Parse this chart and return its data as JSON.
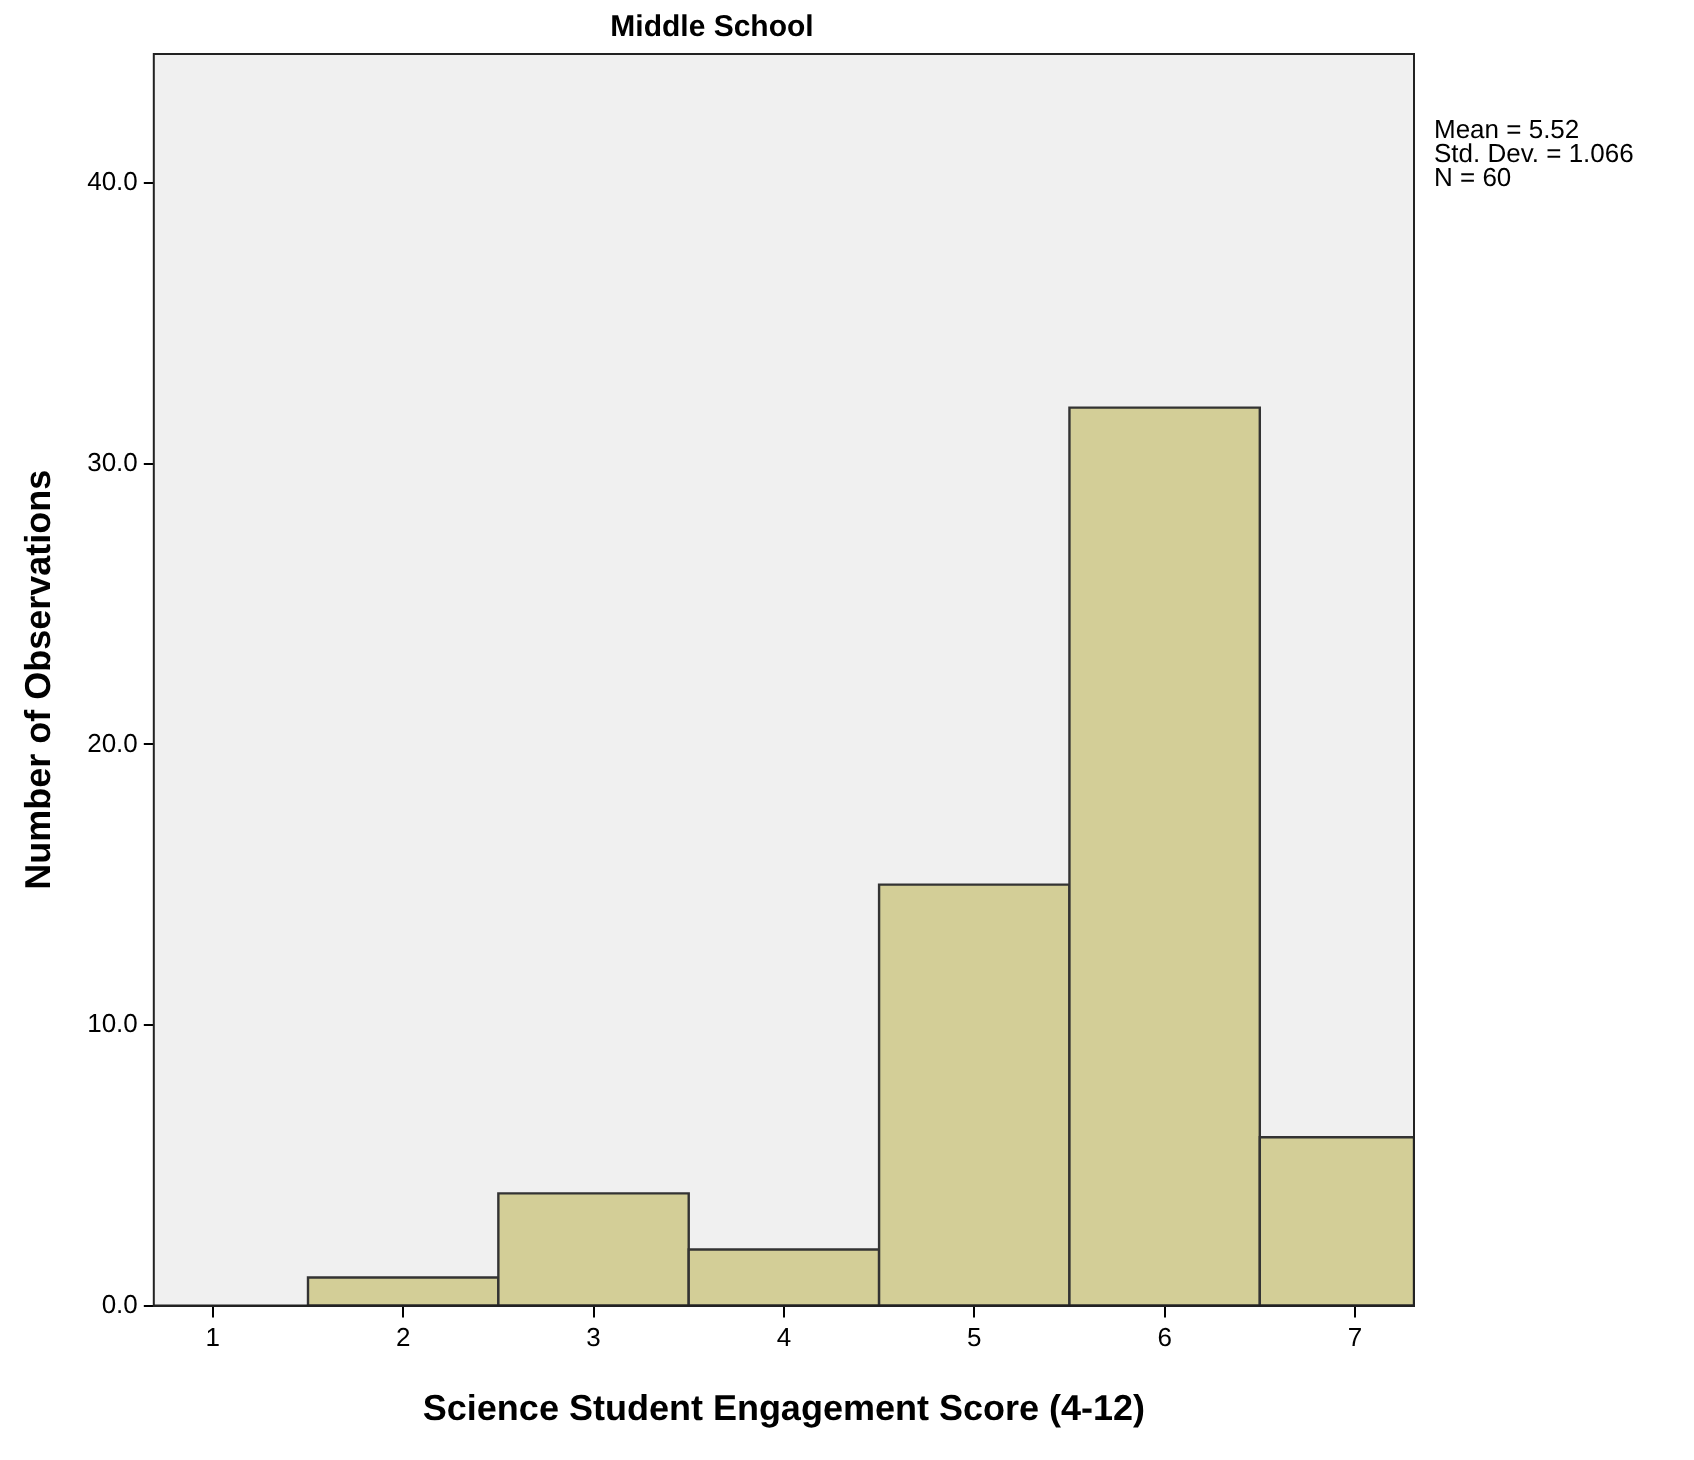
{
  "chart_data": {
    "type": "histogram",
    "title": "Middle School",
    "xlabel": "Science Student Engagement Score (4-12)",
    "ylabel": "Number of Observations",
    "bins": [
      1.5,
      2.5,
      3.5,
      4.5,
      5.5,
      6.5,
      7.31
    ],
    "values": [
      1,
      4,
      2,
      15,
      32,
      6
    ],
    "color": "#d3ce97",
    "xlim": [
      0.69,
      7.31
    ],
    "xticks": [
      1,
      2,
      3,
      4,
      5,
      6,
      7
    ],
    "ylim": [
      0,
      44.6
    ],
    "yticks": [
      {
        "value": 0,
        "label": "0.0"
      },
      {
        "value": 10,
        "label": "10.0"
      },
      {
        "value": 20,
        "label": "20.0"
      },
      {
        "value": 30,
        "label": "30.0"
      },
      {
        "value": 40,
        "label": "40.0"
      }
    ],
    "annotations": [
      "Mean = 5.52",
      "Std. Dev. = 1.066",
      "N = 60"
    ],
    "legend": false
  }
}
